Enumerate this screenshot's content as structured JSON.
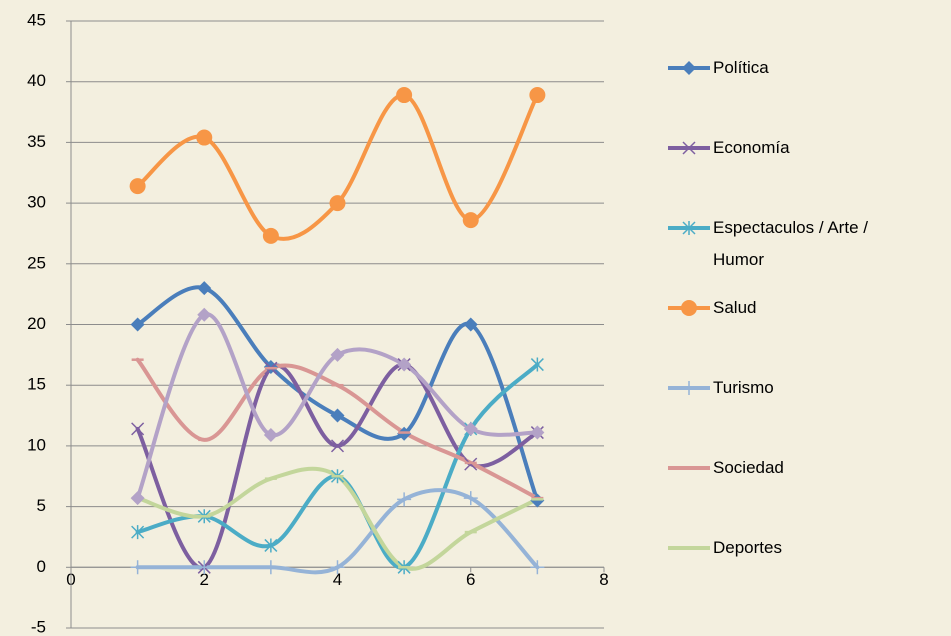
{
  "chart_data": {
    "type": "scatter",
    "smooth": true,
    "x": [
      1,
      2,
      3,
      4,
      5,
      6,
      7
    ],
    "series": [
      {
        "name": "Política",
        "color": "#4a7ebb",
        "marker": "diamond",
        "values": [
          20,
          23,
          16.5,
          12.5,
          11,
          20,
          5.5
        ]
      },
      {
        "name": "Economía",
        "color": "#7d5fa0",
        "marker": "x",
        "values": [
          11.4,
          0,
          16.4,
          10,
          16.7,
          8.5,
          11.1
        ]
      },
      {
        "name": "Espectaculos / Arte / Humor",
        "color": "#4bacc6",
        "marker": "star",
        "values": [
          2.9,
          4.2,
          1.8,
          7.5,
          0,
          11.4,
          16.7
        ]
      },
      {
        "name": "Salud",
        "color": "#f79646",
        "marker": "circle",
        "values": [
          31.4,
          35.4,
          27.3,
          30,
          38.9,
          28.6,
          38.9
        ]
      },
      {
        "name": "Turismo",
        "color": "#95b3d7",
        "marker": "plus",
        "values": [
          0,
          0,
          0,
          0,
          5.6,
          5.7,
          0
        ]
      },
      {
        "name": "Sociedad",
        "color": "#d99694",
        "marker": "dash",
        "values": [
          17.1,
          10.5,
          16.4,
          15,
          11.1,
          8.6,
          5.7
        ]
      },
      {
        "name": "Deportes",
        "color": "#c3d69b",
        "marker": "dash",
        "values": [
          5.7,
          4.2,
          7.3,
          7.5,
          0,
          2.9,
          5.6
        ]
      },
      {
        "name": null,
        "color": "#b3a2c7",
        "marker": "diamond",
        "values": [
          5.7,
          20.8,
          10.9,
          17.5,
          16.7,
          11.4,
          11.1
        ]
      }
    ],
    "xlim": [
      0,
      8
    ],
    "xticks": [
      0,
      2,
      4,
      6,
      8
    ],
    "ylim": [
      -5,
      45
    ],
    "yticks": [
      -5,
      0,
      5,
      10,
      15,
      20,
      25,
      30,
      35,
      40,
      45
    ],
    "grid": true,
    "legend": "right"
  }
}
